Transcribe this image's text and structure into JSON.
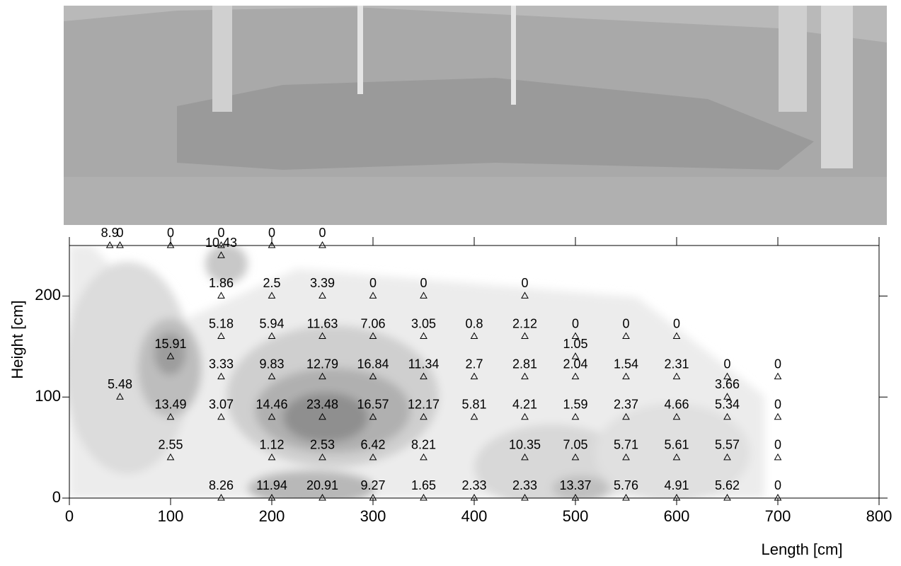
{
  "chart_data": {
    "type": "scatter",
    "x_label": "Length [cm]",
    "y_label": "Height [cm]",
    "x": [
      40,
      50,
      100,
      150,
      200,
      250,
      150,
      150,
      200,
      250,
      300,
      350,
      450,
      150,
      200,
      250,
      300,
      350,
      400,
      450,
      500,
      550,
      600,
      100,
      500,
      150,
      200,
      250,
      300,
      350,
      400,
      450,
      500,
      550,
      600,
      650,
      700,
      50,
      650,
      100,
      150,
      200,
      250,
      300,
      350,
      400,
      450,
      500,
      550,
      600,
      650,
      700,
      100,
      200,
      250,
      300,
      350,
      450,
      500,
      550,
      600,
      650,
      700,
      150,
      200,
      250,
      300,
      350,
      400,
      450,
      500,
      550,
      600,
      650,
      700
    ],
    "y": [
      250,
      250,
      250,
      250,
      250,
      250,
      240,
      200,
      200,
      200,
      200,
      200,
      200,
      160,
      160,
      160,
      160,
      160,
      160,
      160,
      160,
      160,
      160,
      140,
      140,
      120,
      120,
      120,
      120,
      120,
      120,
      120,
      120,
      120,
      120,
      120,
      120,
      100,
      100,
      80,
      80,
      80,
      80,
      80,
      80,
      80,
      80,
      80,
      80,
      80,
      80,
      80,
      40,
      40,
      40,
      40,
      40,
      40,
      40,
      40,
      40,
      40,
      40,
      0,
      0,
      0,
      0,
      0,
      0,
      0,
      0,
      0,
      0,
      0,
      0
    ],
    "values": [
      8.9,
      0,
      0,
      0,
      0,
      0,
      10.43,
      1.86,
      2.5,
      3.39,
      0,
      0,
      0,
      5.18,
      5.94,
      11.63,
      7.06,
      3.05,
      0.8,
      2.12,
      0,
      0,
      0,
      15.91,
      1.05,
      3.33,
      9.83,
      12.79,
      16.84,
      11.34,
      2.7,
      2.81,
      2.04,
      1.54,
      2.31,
      0,
      0,
      5.48,
      3.66,
      13.49,
      3.07,
      14.46,
      23.48,
      16.57,
      12.17,
      5.81,
      4.21,
      1.59,
      2.37,
      4.66,
      5.34,
      0,
      2.55,
      1.12,
      2.53,
      6.42,
      8.21,
      10.35,
      7.05,
      5.71,
      5.61,
      5.57,
      0,
      8.26,
      11.94,
      20.91,
      9.27,
      1.65,
      2.33,
      2.33,
      13.37,
      5.76,
      4.91,
      5.62,
      0
    ],
    "xlim": [
      0,
      800
    ],
    "xticks": [
      0,
      100,
      200,
      300,
      400,
      500,
      600,
      700,
      800
    ],
    "ylim": [
      0,
      250
    ],
    "yticks": [
      0,
      100,
      200
    ]
  }
}
